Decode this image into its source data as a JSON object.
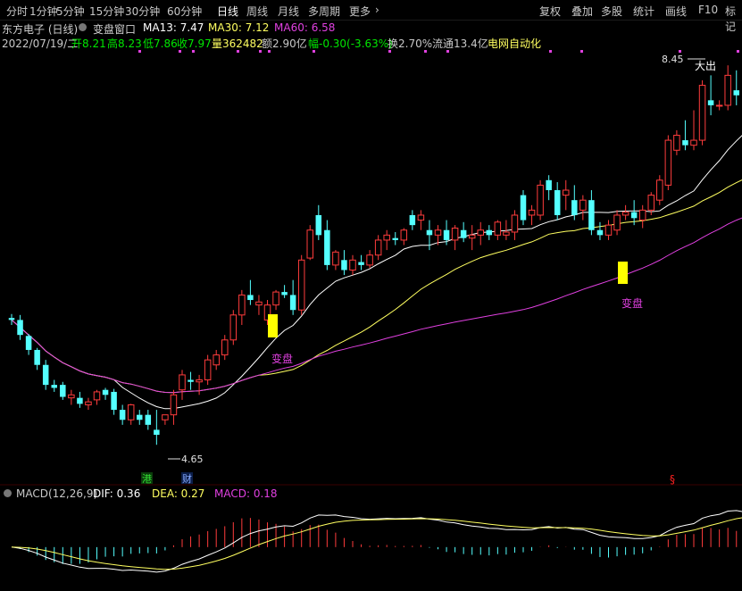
{
  "toolbar": {
    "periods": [
      "分时",
      "1分钟",
      "5分钟",
      "15分钟",
      "30分钟",
      "60分钟",
      "日线",
      "周线",
      "月线",
      "多周期",
      "更多"
    ],
    "active_period": "日线",
    "right_tools": [
      "复权",
      "叠加",
      "多股",
      "统计",
      "画线",
      "F10",
      "标记"
    ]
  },
  "header": {
    "title": "东方电子 (日线)",
    "window_name": "变盘窗口",
    "ma13": "MA13: 7.47",
    "ma30": "MA30: 7.12",
    "ma60": "MA60: 6.58"
  },
  "quote": {
    "date": "2022/07/19/二",
    "open": "开8.21",
    "high": "高8.23",
    "low": "低7.86",
    "close": "收7.97",
    "volume": "量362482",
    "amount": "额2.90亿",
    "change": "幅-0.30(-3.63%)",
    "turnover": "换2.70%",
    "float": "流通13.4亿",
    "sector": "电网自动化"
  },
  "macd": {
    "name": "MACD(12,26,9)",
    "dif": "DIF: 0.36",
    "dea": "DEA: 0.27",
    "macd": "MACD: 0.18"
  },
  "annotations": {
    "high_label": "8.45",
    "low_label": "4.65",
    "sell_signal": "大出",
    "change_label_1": "变盘",
    "change_label_2": "变盘",
    "tag_hk": "港",
    "tag_fin": "财",
    "tag_s": "§"
  },
  "colors": {
    "up": "#ff3c3c",
    "down": "#54ffff",
    "ma13": "#ffffff",
    "ma30": "#ffff60",
    "ma60": "#e040e0",
    "signal_box": "#ffff00"
  },
  "chart_data": {
    "type": "candlestick",
    "price_range": [
      4.5,
      8.55
    ],
    "candles": [
      [
        5.92,
        5.96,
        5.85,
        5.9
      ],
      [
        5.9,
        5.95,
        5.7,
        5.75
      ],
      [
        5.74,
        5.76,
        5.55,
        5.6
      ],
      [
        5.6,
        5.62,
        5.4,
        5.45
      ],
      [
        5.45,
        5.5,
        5.2,
        5.25
      ],
      [
        5.25,
        5.3,
        5.18,
        5.22
      ],
      [
        5.25,
        5.28,
        5.1,
        5.13
      ],
      [
        5.12,
        5.2,
        5.05,
        5.15
      ],
      [
        5.12,
        5.18,
        5.02,
        5.06
      ],
      [
        5.05,
        5.12,
        5.0,
        5.08
      ],
      [
        5.1,
        5.2,
        5.05,
        5.18
      ],
      [
        5.2,
        5.22,
        5.1,
        5.15
      ],
      [
        5.18,
        5.21,
        4.95,
        5.0
      ],
      [
        5.0,
        5.05,
        4.85,
        4.9
      ],
      [
        4.9,
        5.06,
        4.85,
        5.05
      ],
      [
        4.95,
        5.0,
        4.85,
        4.9
      ],
      [
        4.95,
        5.0,
        4.8,
        4.85
      ],
      [
        4.8,
        5.0,
        4.65,
        4.75
      ],
      [
        4.9,
        4.95,
        4.85,
        4.95
      ],
      [
        4.95,
        5.2,
        4.85,
        5.15
      ],
      [
        5.2,
        5.4,
        5.1,
        5.35
      ],
      [
        5.3,
        5.38,
        5.2,
        5.28
      ],
      [
        5.28,
        5.35,
        5.15,
        5.3
      ],
      [
        5.3,
        5.55,
        5.25,
        5.5
      ],
      [
        5.45,
        5.6,
        5.4,
        5.55
      ],
      [
        5.55,
        5.75,
        5.5,
        5.7
      ],
      [
        5.7,
        6.0,
        5.65,
        5.95
      ],
      [
        5.95,
        6.2,
        5.85,
        6.15
      ],
      [
        6.15,
        6.3,
        6.05,
        6.1
      ],
      [
        6.05,
        6.15,
        5.95,
        6.08
      ],
      [
        5.9,
        6.1,
        5.85,
        6.05
      ],
      [
        6.05,
        6.2,
        6.0,
        6.18
      ],
      [
        6.18,
        6.25,
        6.12,
        6.15
      ],
      [
        6.15,
        6.3,
        5.95,
        6.0
      ],
      [
        6.0,
        6.55,
        5.95,
        6.5
      ],
      [
        6.52,
        6.85,
        6.5,
        6.8
      ],
      [
        6.95,
        7.05,
        6.7,
        6.75
      ],
      [
        6.8,
        6.9,
        6.4,
        6.45
      ],
      [
        6.45,
        6.6,
        6.4,
        6.58
      ],
      [
        6.5,
        6.6,
        6.35,
        6.4
      ],
      [
        6.4,
        6.55,
        6.35,
        6.5
      ],
      [
        6.48,
        6.55,
        6.4,
        6.45
      ],
      [
        6.45,
        6.6,
        6.42,
        6.55
      ],
      [
        6.55,
        6.75,
        6.5,
        6.7
      ],
      [
        6.7,
        6.8,
        6.6,
        6.75
      ],
      [
        6.72,
        6.78,
        6.65,
        6.7
      ],
      [
        6.7,
        6.82,
        6.65,
        6.8
      ],
      [
        6.95,
        7.0,
        6.8,
        6.85
      ],
      [
        6.9,
        7.0,
        6.8,
        6.95
      ],
      [
        6.8,
        6.9,
        6.6,
        6.75
      ],
      [
        6.75,
        6.85,
        6.65,
        6.8
      ],
      [
        6.8,
        6.9,
        6.65,
        6.7
      ],
      [
        6.7,
        6.85,
        6.6,
        6.82
      ],
      [
        6.8,
        6.88,
        6.68,
        6.72
      ],
      [
        6.72,
        6.85,
        6.6,
        6.75
      ],
      [
        6.75,
        6.88,
        6.65,
        6.8
      ],
      [
        6.8,
        6.85,
        6.7,
        6.75
      ],
      [
        6.75,
        6.9,
        6.7,
        6.88
      ],
      [
        6.75,
        6.9,
        6.7,
        6.78
      ],
      [
        6.78,
        7.0,
        6.7,
        6.95
      ],
      [
        7.15,
        7.2,
        6.85,
        6.9
      ],
      [
        6.95,
        7.05,
        6.85,
        7.0
      ],
      [
        6.95,
        7.3,
        6.9,
        7.25
      ],
      [
        7.3,
        7.35,
        7.1,
        7.2
      ],
      [
        7.2,
        7.28,
        6.9,
        6.95
      ],
      [
        7.15,
        7.3,
        7.0,
        7.2
      ],
      [
        7.1,
        7.25,
        6.9,
        6.95
      ],
      [
        7.0,
        7.15,
        6.9,
        7.1
      ],
      [
        7.1,
        7.2,
        6.75,
        6.8
      ],
      [
        6.8,
        6.88,
        6.7,
        6.75
      ],
      [
        6.75,
        6.9,
        6.7,
        6.85
      ],
      [
        6.8,
        7.0,
        6.75,
        6.95
      ],
      [
        6.95,
        7.05,
        6.9,
        6.98
      ],
      [
        6.98,
        7.1,
        6.85,
        6.92
      ],
      [
        6.9,
        7.05,
        6.82,
        7.0
      ],
      [
        7.0,
        7.18,
        6.95,
        7.15
      ],
      [
        7.1,
        7.35,
        7.05,
        7.3
      ],
      [
        7.25,
        7.75,
        7.2,
        7.7
      ],
      [
        7.6,
        7.8,
        7.55,
        7.75
      ],
      [
        7.7,
        7.9,
        7.6,
        7.65
      ],
      [
        7.65,
        8.0,
        7.6,
        7.7
      ],
      [
        7.7,
        8.3,
        7.65,
        8.25
      ],
      [
        8.1,
        8.35,
        7.95,
        8.05
      ],
      [
        8.05,
        8.1,
        8.0,
        8.05
      ],
      [
        8.05,
        8.45,
        8.0,
        8.35
      ],
      [
        8.2,
        8.4,
        8.05,
        8.15
      ],
      [
        8.21,
        8.23,
        7.86,
        7.97
      ]
    ],
    "macd_range": [
      -0.4,
      0.45
    ]
  }
}
